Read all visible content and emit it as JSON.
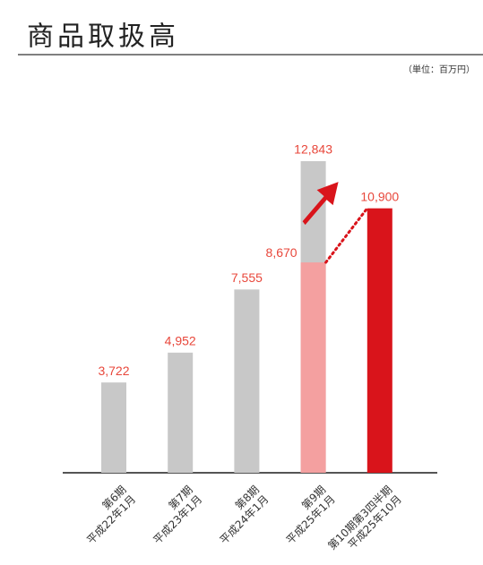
{
  "chart_data": {
    "type": "bar",
    "title": "商品取扱高",
    "subtitle": "（単位：百万円）",
    "categories": [
      [
        "第6期",
        "平成22年1月"
      ],
      [
        "第7期",
        "平成23年1月"
      ],
      [
        "第8期",
        "平成24年1月"
      ],
      [
        "第9期",
        "平成25年1月"
      ],
      [
        "第10期第3四半期",
        "平成25年10月"
      ]
    ],
    "values": [
      3722,
      4952,
      7555,
      12843,
      10900
    ],
    "value_labels": [
      "3,722",
      "4,952",
      "7,555",
      "12,843",
      "10,900"
    ],
    "colors": [
      "#c8c8c8",
      "#c8c8c8",
      "#c8c8c8",
      "#c8c8c8",
      "#d9141b"
    ],
    "overlay_values": [
      null,
      null,
      null,
      8670,
      null
    ],
    "overlay_value_labels": [
      null,
      null,
      null,
      "8,670",
      null
    ],
    "overlay_color": "#f4a0a0"
  }
}
